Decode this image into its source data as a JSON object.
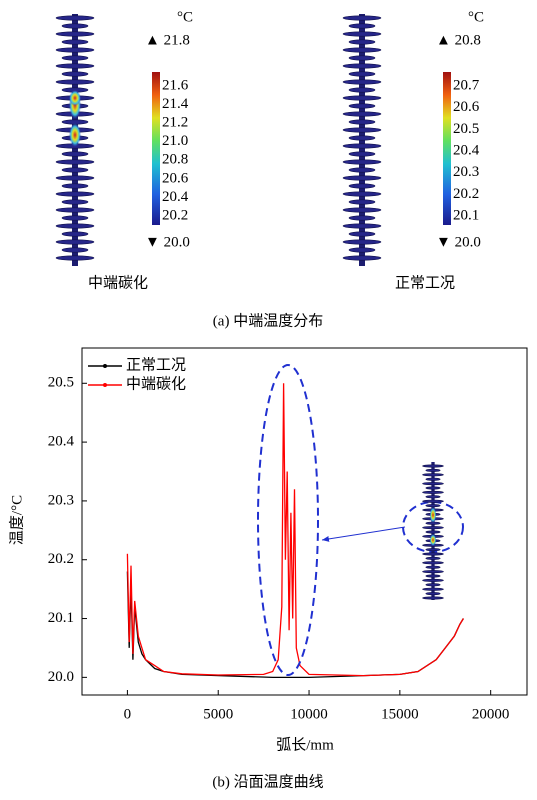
{
  "panel_a": {
    "caption": "(a) 中端温度分布",
    "maps": [
      {
        "label": "中端碳化",
        "unit": "°C",
        "max": "▲ 21.8",
        "min": "▼ 20.0",
        "colorbar_ticks": [
          "21.6",
          "21.4",
          "21.2",
          "21.0",
          "20.8",
          "20.6",
          "20.4",
          "20.2"
        ]
      },
      {
        "label": "正常工况",
        "unit": "°C",
        "max": "▲ 20.8",
        "min": "▼ 20.0",
        "colorbar_ticks": [
          "20.7",
          "20.6",
          "20.5",
          "20.4",
          "20.3",
          "20.2",
          "20.1"
        ]
      }
    ]
  },
  "chart_data": {
    "type": "line",
    "caption": "(b) 沿面温度曲线",
    "xlabel": "弧长/mm",
    "ylabel": "温度/°C",
    "xlim": [
      -2500,
      22000
    ],
    "ylim": [
      19.97,
      20.56
    ],
    "xticks": [
      0,
      5000,
      10000,
      15000,
      20000
    ],
    "yticks": [
      {
        "value": 20,
        "label": "20.0"
      },
      20.1,
      20.2,
      20.3,
      20.4,
      20.5
    ],
    "legend": "top-left",
    "series": [
      {
        "name": "正常工况",
        "color": "#000000",
        "x": [
          0,
          100,
          200,
          300,
          400,
          600,
          800,
          1000,
          1500,
          2000,
          3000,
          5000,
          8000,
          10000,
          13000,
          15000,
          16000,
          17000,
          17500,
          18000,
          18300,
          18500
        ],
        "values": [
          20.18,
          20.05,
          20.16,
          20.03,
          20.12,
          20.06,
          20.04,
          20.03,
          20.015,
          20.01,
          20.005,
          20.003,
          20.0,
          20.0,
          20.003,
          20.005,
          20.01,
          20.03,
          20.05,
          20.07,
          20.09,
          20.1
        ]
      },
      {
        "name": "中端碳化",
        "color": "#ff0000",
        "x": [
          0,
          100,
          200,
          300,
          400,
          600,
          800,
          1000,
          1500,
          2000,
          3000,
          5000,
          7500,
          8000,
          8300,
          8500,
          8600,
          8700,
          8800,
          8900,
          9000,
          9100,
          9200,
          9300,
          9500,
          10000,
          13000,
          15000,
          16000,
          17000,
          17500,
          18000,
          18300,
          18500
        ],
        "values": [
          20.21,
          20.06,
          20.19,
          20.04,
          20.13,
          20.07,
          20.05,
          20.03,
          20.02,
          20.01,
          20.006,
          20.004,
          20.005,
          20.01,
          20.03,
          20.12,
          20.5,
          20.2,
          20.35,
          20.08,
          20.28,
          20.1,
          20.32,
          20.05,
          20.02,
          20.005,
          20.003,
          20.005,
          20.01,
          20.03,
          20.05,
          20.07,
          20.09,
          20.1
        ]
      }
    ]
  }
}
